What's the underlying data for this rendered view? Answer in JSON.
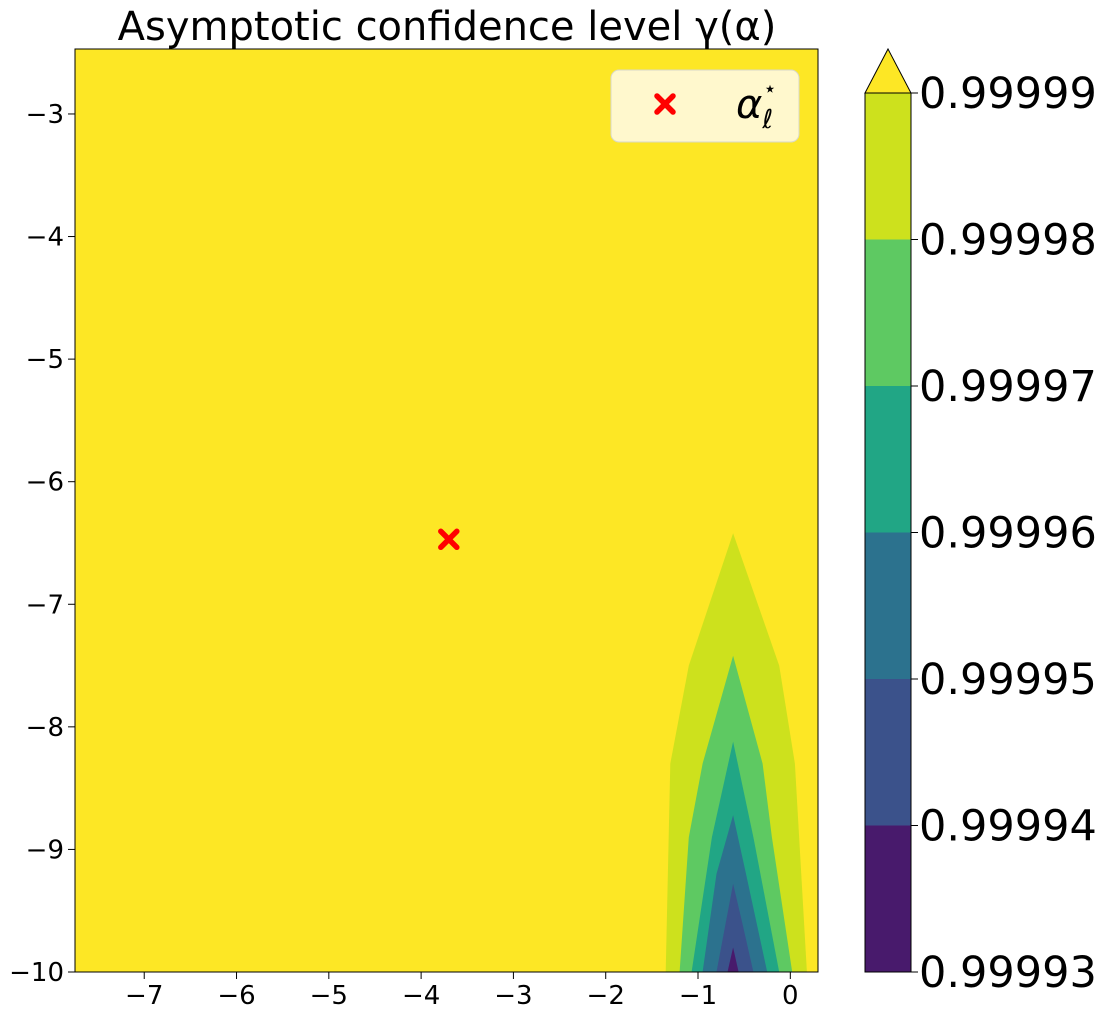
{
  "chart_data": {
    "type": "contour",
    "title": "Asymptotic confidence level γ(α)",
    "xlabel": "",
    "ylabel": "",
    "xlim": [
      -7.75,
      0.3
    ],
    "ylim": [
      -10,
      -2.47
    ],
    "x_ticks": [
      -7,
      -6,
      -5,
      -4,
      -3,
      -2,
      -1,
      0
    ],
    "x_tick_labels": [
      "−7",
      "−6",
      "−5",
      "−4",
      "−3",
      "−2",
      "−1",
      "0"
    ],
    "y_ticks": [
      -3,
      -4,
      -5,
      -6,
      -7,
      -8,
      -9,
      -10
    ],
    "y_tick_labels": [
      "−3",
      "−4",
      "−5",
      "−6",
      "−7",
      "−8",
      "−9",
      "−10"
    ],
    "grid": false,
    "colorbar": {
      "levels": [
        0.99993,
        0.99994,
        0.99995,
        0.99996,
        0.99997,
        0.99998,
        0.99999
      ],
      "tick_labels": [
        "0.99993",
        "0.99994",
        "0.99995",
        "0.99996",
        "0.99997",
        "0.99998",
        "0.99999"
      ],
      "colors": [
        "#481a6c",
        "#3b528b",
        "#2c728e",
        "#21a685",
        "#5ec962",
        "#cde11d"
      ],
      "extend_color": "#fde725",
      "extend": "max"
    },
    "contours": [
      {
        "level": 0.99999,
        "color": "#cde11d",
        "points": [
          [
            -1.35,
            -10
          ],
          [
            -1.3,
            -8.3
          ],
          [
            -1.1,
            -7.5
          ],
          [
            -0.62,
            -6.42
          ],
          [
            -0.12,
            -7.5
          ],
          [
            0.05,
            -8.3
          ],
          [
            0.18,
            -10
          ]
        ]
      },
      {
        "level": 0.99998,
        "color": "#5ec962",
        "points": [
          [
            -1.2,
            -10
          ],
          [
            -1.1,
            -8.9
          ],
          [
            -0.95,
            -8.3
          ],
          [
            -0.62,
            -7.42
          ],
          [
            -0.3,
            -8.3
          ],
          [
            -0.2,
            -8.9
          ],
          [
            0.02,
            -10
          ]
        ]
      },
      {
        "level": 0.99997,
        "color": "#21a685",
        "points": [
          [
            -1.07,
            -10
          ],
          [
            -0.85,
            -8.9
          ],
          [
            -0.62,
            -8.12
          ],
          [
            -0.4,
            -8.9
          ],
          [
            -0.12,
            -10
          ]
        ]
      },
      {
        "level": 0.99996,
        "color": "#2c728e",
        "points": [
          [
            -0.95,
            -10
          ],
          [
            -0.8,
            -9.2
          ],
          [
            -0.62,
            -8.72
          ],
          [
            -0.48,
            -9.2
          ],
          [
            -0.25,
            -10
          ]
        ]
      },
      {
        "level": 0.99995,
        "color": "#3b528b",
        "points": [
          [
            -0.8,
            -10
          ],
          [
            -0.7,
            -9.6
          ],
          [
            -0.62,
            -9.28
          ],
          [
            -0.52,
            -9.6
          ],
          [
            -0.4,
            -10
          ]
        ]
      },
      {
        "level": 0.99994,
        "color": "#481a6c",
        "points": [
          [
            -0.68,
            -10
          ],
          [
            -0.62,
            -9.8
          ],
          [
            -0.56,
            -10
          ]
        ]
      }
    ],
    "marker": {
      "x": -3.7,
      "y": -6.47,
      "symbol": "x",
      "color": "#ff0000",
      "label": "α",
      "label_subscript": "ℓ",
      "label_superscript": "⋆"
    },
    "legend": {
      "placement": "top-right"
    }
  }
}
